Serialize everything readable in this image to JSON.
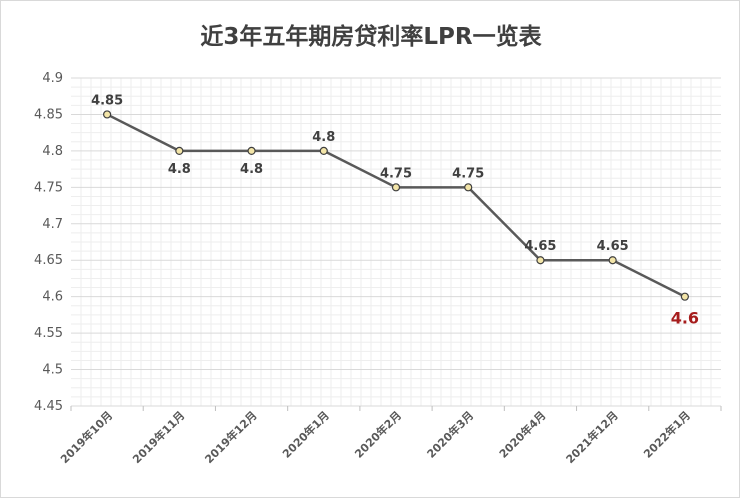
{
  "chart_data": {
    "type": "line",
    "title": "近3年五年期房贷利率LPR一览表",
    "xlabel": "",
    "ylabel": "",
    "categories": [
      "2019年10月",
      "2019年11月",
      "2019年12月",
      "2020年1月",
      "2020年2月",
      "2020年3月",
      "2020年4月",
      "2021年12月",
      "2022年1月"
    ],
    "series": [
      {
        "values": [
          4.85,
          4.8,
          4.8,
          4.8,
          4.75,
          4.75,
          4.65,
          4.65,
          4.6
        ]
      }
    ],
    "data_labels": [
      "4.85",
      "4.8",
      "4.8",
      "4.8",
      "4.75",
      "4.75",
      "4.65",
      "4.65",
      "4.6"
    ],
    "ylim": [
      4.45,
      4.9
    ],
    "yticks": [
      "4.45",
      "4.5",
      "4.55",
      "4.6",
      "4.65",
      "4.7",
      "4.75",
      "4.8",
      "4.85",
      "4.9"
    ],
    "grid": true,
    "legend": "none",
    "colors": {
      "line": "#595959",
      "marker_fill": "#f3e5a8",
      "marker_stroke": "#404040",
      "highlight_label": "#a61c1c",
      "grid_major": "#d9d9d9",
      "grid_minor": "#eeeeee"
    }
  }
}
